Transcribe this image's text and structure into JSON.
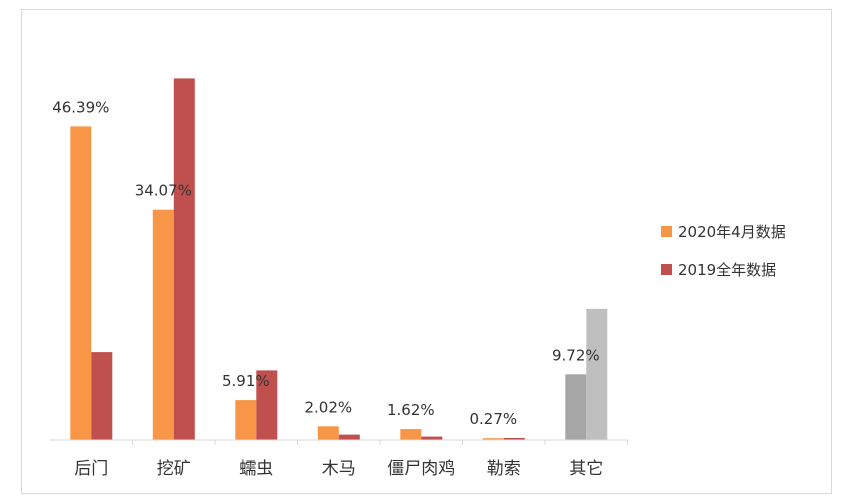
{
  "chart_data": {
    "type": "bar",
    "categories": [
      "后门",
      "挖矿",
      "蠕虫",
      "木马",
      "僵尸肉鸡",
      "勒索",
      "其它"
    ],
    "series": [
      {
        "name": "2020年4月数据",
        "values": [
          46.39,
          34.07,
          5.91,
          2.02,
          1.62,
          0.27,
          9.72
        ],
        "color": "#F79646",
        "other_color": "#A6A6A6"
      },
      {
        "name": "2019全年数据",
        "values": [
          13.0,
          53.5,
          10.3,
          0.8,
          0.5,
          0.3,
          19.4
        ],
        "color": "#C0504D",
        "other_color": "#BFBFBF"
      }
    ],
    "data_labels": [
      "46.39%",
      "34.07%",
      "5.91%",
      "2.02%",
      "1.62%",
      "0.27%",
      "9.72%"
    ],
    "ylim": [
      0,
      54
    ],
    "legend_position": "right",
    "grid": false
  }
}
